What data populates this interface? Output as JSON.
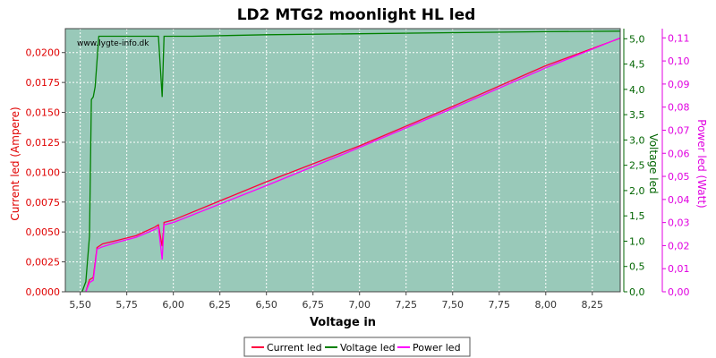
{
  "chart_data": {
    "type": "line",
    "title": "LD2 MTG2 moonlight HL led",
    "watermark": "www.lygte-info.dk",
    "xlabel": "Voltage in",
    "grid": true,
    "legend_position": "bottom-center",
    "plot_background": "#99c9b9",
    "x_range": [
      5.42,
      8.4
    ],
    "x_ticks": [
      "5,50",
      "5,75",
      "6,00",
      "6,25",
      "6,50",
      "6,75",
      "7,00",
      "7,25",
      "7,50",
      "7,75",
      "8,00",
      "8,25"
    ],
    "axes": {
      "left": {
        "label": "Current led (Ampere)",
        "color": "#e00000",
        "range": [
          0,
          0.022
        ],
        "ticks": [
          "0,0000",
          "0,0025",
          "0,0050",
          "0,0075",
          "0,0100",
          "0,0125",
          "0,0150",
          "0,0175",
          "0,0200"
        ]
      },
      "right1": {
        "label": "Voltage led",
        "color": "#006400",
        "range": [
          0,
          5.2
        ],
        "ticks": [
          "0,0",
          "0,5",
          "1,0",
          "1,5",
          "2,0",
          "2,5",
          "3,0",
          "3,5",
          "4,0",
          "4,5",
          "5,0"
        ]
      },
      "right2": {
        "label": "Power led (Watt)",
        "color": "#e000e0",
        "range": [
          0,
          0.114
        ],
        "ticks": [
          "0,00",
          "0,01",
          "0,02",
          "0,03",
          "0,04",
          "0,05",
          "0,06",
          "0,07",
          "0,08",
          "0,09",
          "0,10",
          "0,11"
        ]
      }
    },
    "series": [
      {
        "name": "Current led",
        "axis": "left",
        "color": "#ff0040",
        "x": [
          5.53,
          5.55,
          5.57,
          5.59,
          5.62,
          5.7,
          5.8,
          5.9,
          5.92,
          5.94,
          5.95,
          6.0,
          6.5,
          7.0,
          7.5,
          8.0,
          8.4
        ],
        "y": [
          0.0,
          0.001,
          0.0012,
          0.0037,
          0.004,
          0.0043,
          0.0047,
          0.0054,
          0.0056,
          0.0038,
          0.0058,
          0.006,
          0.0092,
          0.0122,
          0.0155,
          0.0189,
          0.0212
        ]
      },
      {
        "name": "Voltage led",
        "axis": "right1",
        "color": "#008000",
        "x": [
          5.51,
          5.53,
          5.55,
          5.56,
          5.57,
          5.58,
          5.6,
          5.7,
          5.8,
          5.9,
          5.92,
          5.94,
          5.95,
          6.1,
          6.5,
          7.0,
          7.5,
          8.0,
          8.4
        ],
        "y": [
          0.0,
          0.2,
          1.1,
          3.8,
          3.85,
          4.05,
          5.05,
          5.05,
          5.05,
          5.05,
          5.05,
          3.85,
          5.05,
          5.05,
          5.08,
          5.1,
          5.12,
          5.14,
          5.15
        ]
      },
      {
        "name": "Power led",
        "axis": "right2",
        "color": "#ff00ff",
        "x": [
          5.53,
          5.55,
          5.57,
          5.59,
          5.62,
          5.7,
          5.8,
          5.9,
          5.92,
          5.94,
          5.95,
          6.0,
          6.5,
          7.0,
          7.5,
          8.0,
          8.4
        ],
        "y": [
          0.0,
          0.004,
          0.005,
          0.0185,
          0.0195,
          0.0215,
          0.0236,
          0.027,
          0.028,
          0.014,
          0.029,
          0.03,
          0.046,
          0.0625,
          0.0795,
          0.097,
          0.11
        ]
      }
    ]
  }
}
